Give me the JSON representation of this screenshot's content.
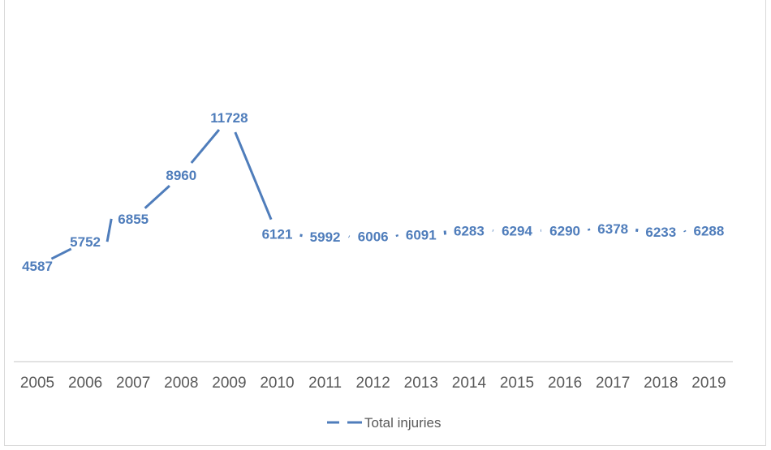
{
  "chart_data": {
    "type": "line",
    "title": "",
    "xlabel": "",
    "ylabel": "",
    "categories": [
      "2005",
      "2006",
      "2007",
      "2008",
      "2009",
      "2010",
      "2011",
      "2012",
      "2013",
      "2014",
      "2015",
      "2016",
      "2017",
      "2018",
      "2019"
    ],
    "series": [
      {
        "name": "Total injuries",
        "values": [
          4587,
          5752,
          6855,
          8960,
          11728,
          6121,
          5992,
          6006,
          6091,
          6283,
          6294,
          6290,
          6378,
          6233,
          6288
        ],
        "color": "#4f7dbb",
        "line_style": "solid",
        "data_labels": true
      }
    ],
    "grid": false,
    "legend_position": "bottom",
    "y_axis_visible": false
  },
  "legend": {
    "label": "Total injuries"
  }
}
